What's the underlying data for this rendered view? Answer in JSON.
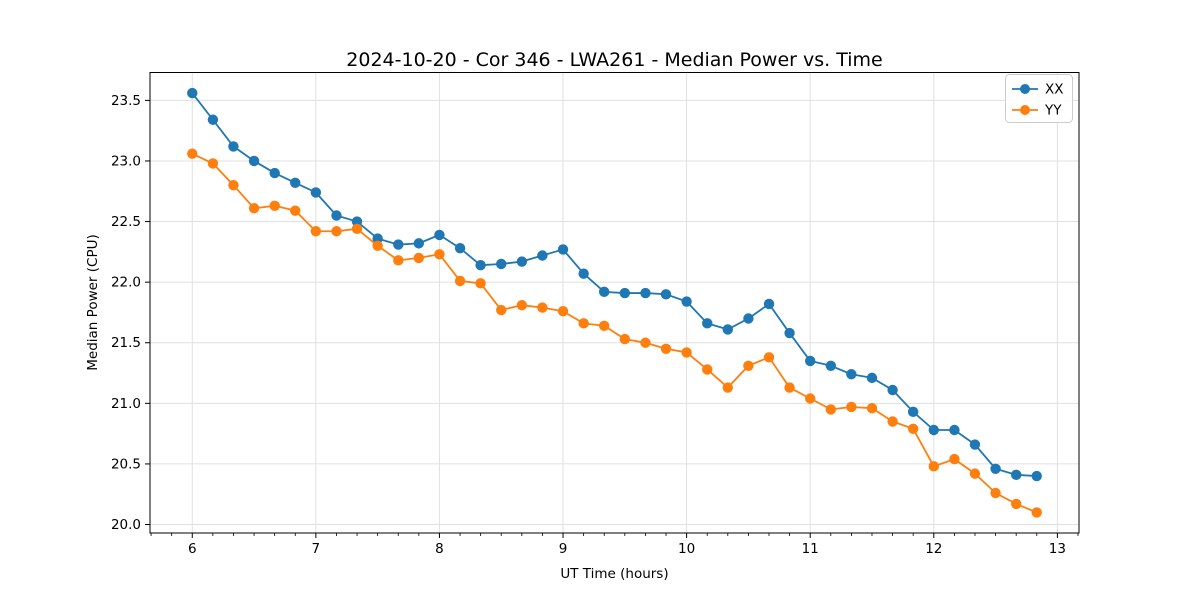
{
  "chart_data": {
    "type": "line",
    "title": "2024-10-20 - Cor 346 - LWA261 - Median Power vs. Time",
    "xlabel": "UT Time (hours)",
    "ylabel": "Median Power (CPU)",
    "xlim": [
      5.658,
      13.175
    ],
    "ylim": [
      19.93,
      23.73
    ],
    "xticks": [
      6,
      7,
      8,
      9,
      10,
      11,
      12,
      13
    ],
    "yticks": [
      20.0,
      20.5,
      21.0,
      21.5,
      22.0,
      22.5,
      23.0,
      23.5
    ],
    "x_minor_tick_interval": 0.16667,
    "grid": true,
    "legend_position": "upper right",
    "legend": [
      "XX",
      "YY"
    ],
    "x": [
      6.0,
      6.167,
      6.333,
      6.5,
      6.667,
      6.833,
      7.0,
      7.167,
      7.333,
      7.5,
      7.667,
      7.833,
      8.0,
      8.167,
      8.333,
      8.5,
      8.667,
      8.833,
      9.0,
      9.167,
      9.333,
      9.5,
      9.667,
      9.833,
      10.0,
      10.167,
      10.333,
      10.5,
      10.667,
      10.833,
      11.0,
      11.167,
      11.333,
      11.5,
      11.667,
      11.833,
      12.0,
      12.167,
      12.333,
      12.5,
      12.667,
      12.833
    ],
    "series": [
      {
        "name": "XX",
        "color": "#1f77b4",
        "values": [
          23.56,
          23.34,
          23.12,
          23.0,
          22.9,
          22.82,
          22.74,
          22.55,
          22.5,
          22.36,
          22.31,
          22.32,
          22.39,
          22.28,
          22.14,
          22.15,
          22.17,
          22.22,
          22.27,
          22.07,
          21.92,
          21.91,
          21.91,
          21.9,
          21.84,
          21.66,
          21.61,
          21.7,
          21.82,
          21.58,
          21.35,
          21.31,
          21.24,
          21.21,
          21.11,
          20.93,
          20.78,
          20.78,
          20.66,
          20.46,
          20.41,
          20.4
        ]
      },
      {
        "name": "YY",
        "color": "#ff7f0e",
        "values": [
          23.06,
          22.98,
          22.8,
          22.61,
          22.63,
          22.59,
          22.42,
          22.42,
          22.44,
          22.3,
          22.18,
          22.2,
          22.23,
          22.01,
          21.99,
          21.77,
          21.81,
          21.79,
          21.76,
          21.66,
          21.64,
          21.53,
          21.5,
          21.45,
          21.42,
          21.28,
          21.13,
          21.31,
          21.38,
          21.13,
          21.04,
          20.95,
          20.97,
          20.96,
          20.85,
          20.79,
          20.48,
          20.54,
          20.42,
          20.26,
          20.17,
          20.1
        ]
      }
    ]
  },
  "colors": {
    "background": "#ffffff",
    "grid": "#e0e0e0",
    "spine": "#000000",
    "legend_border": "#cccccc",
    "series_xx": "#1f77b4",
    "series_yy": "#ff7f0e"
  }
}
